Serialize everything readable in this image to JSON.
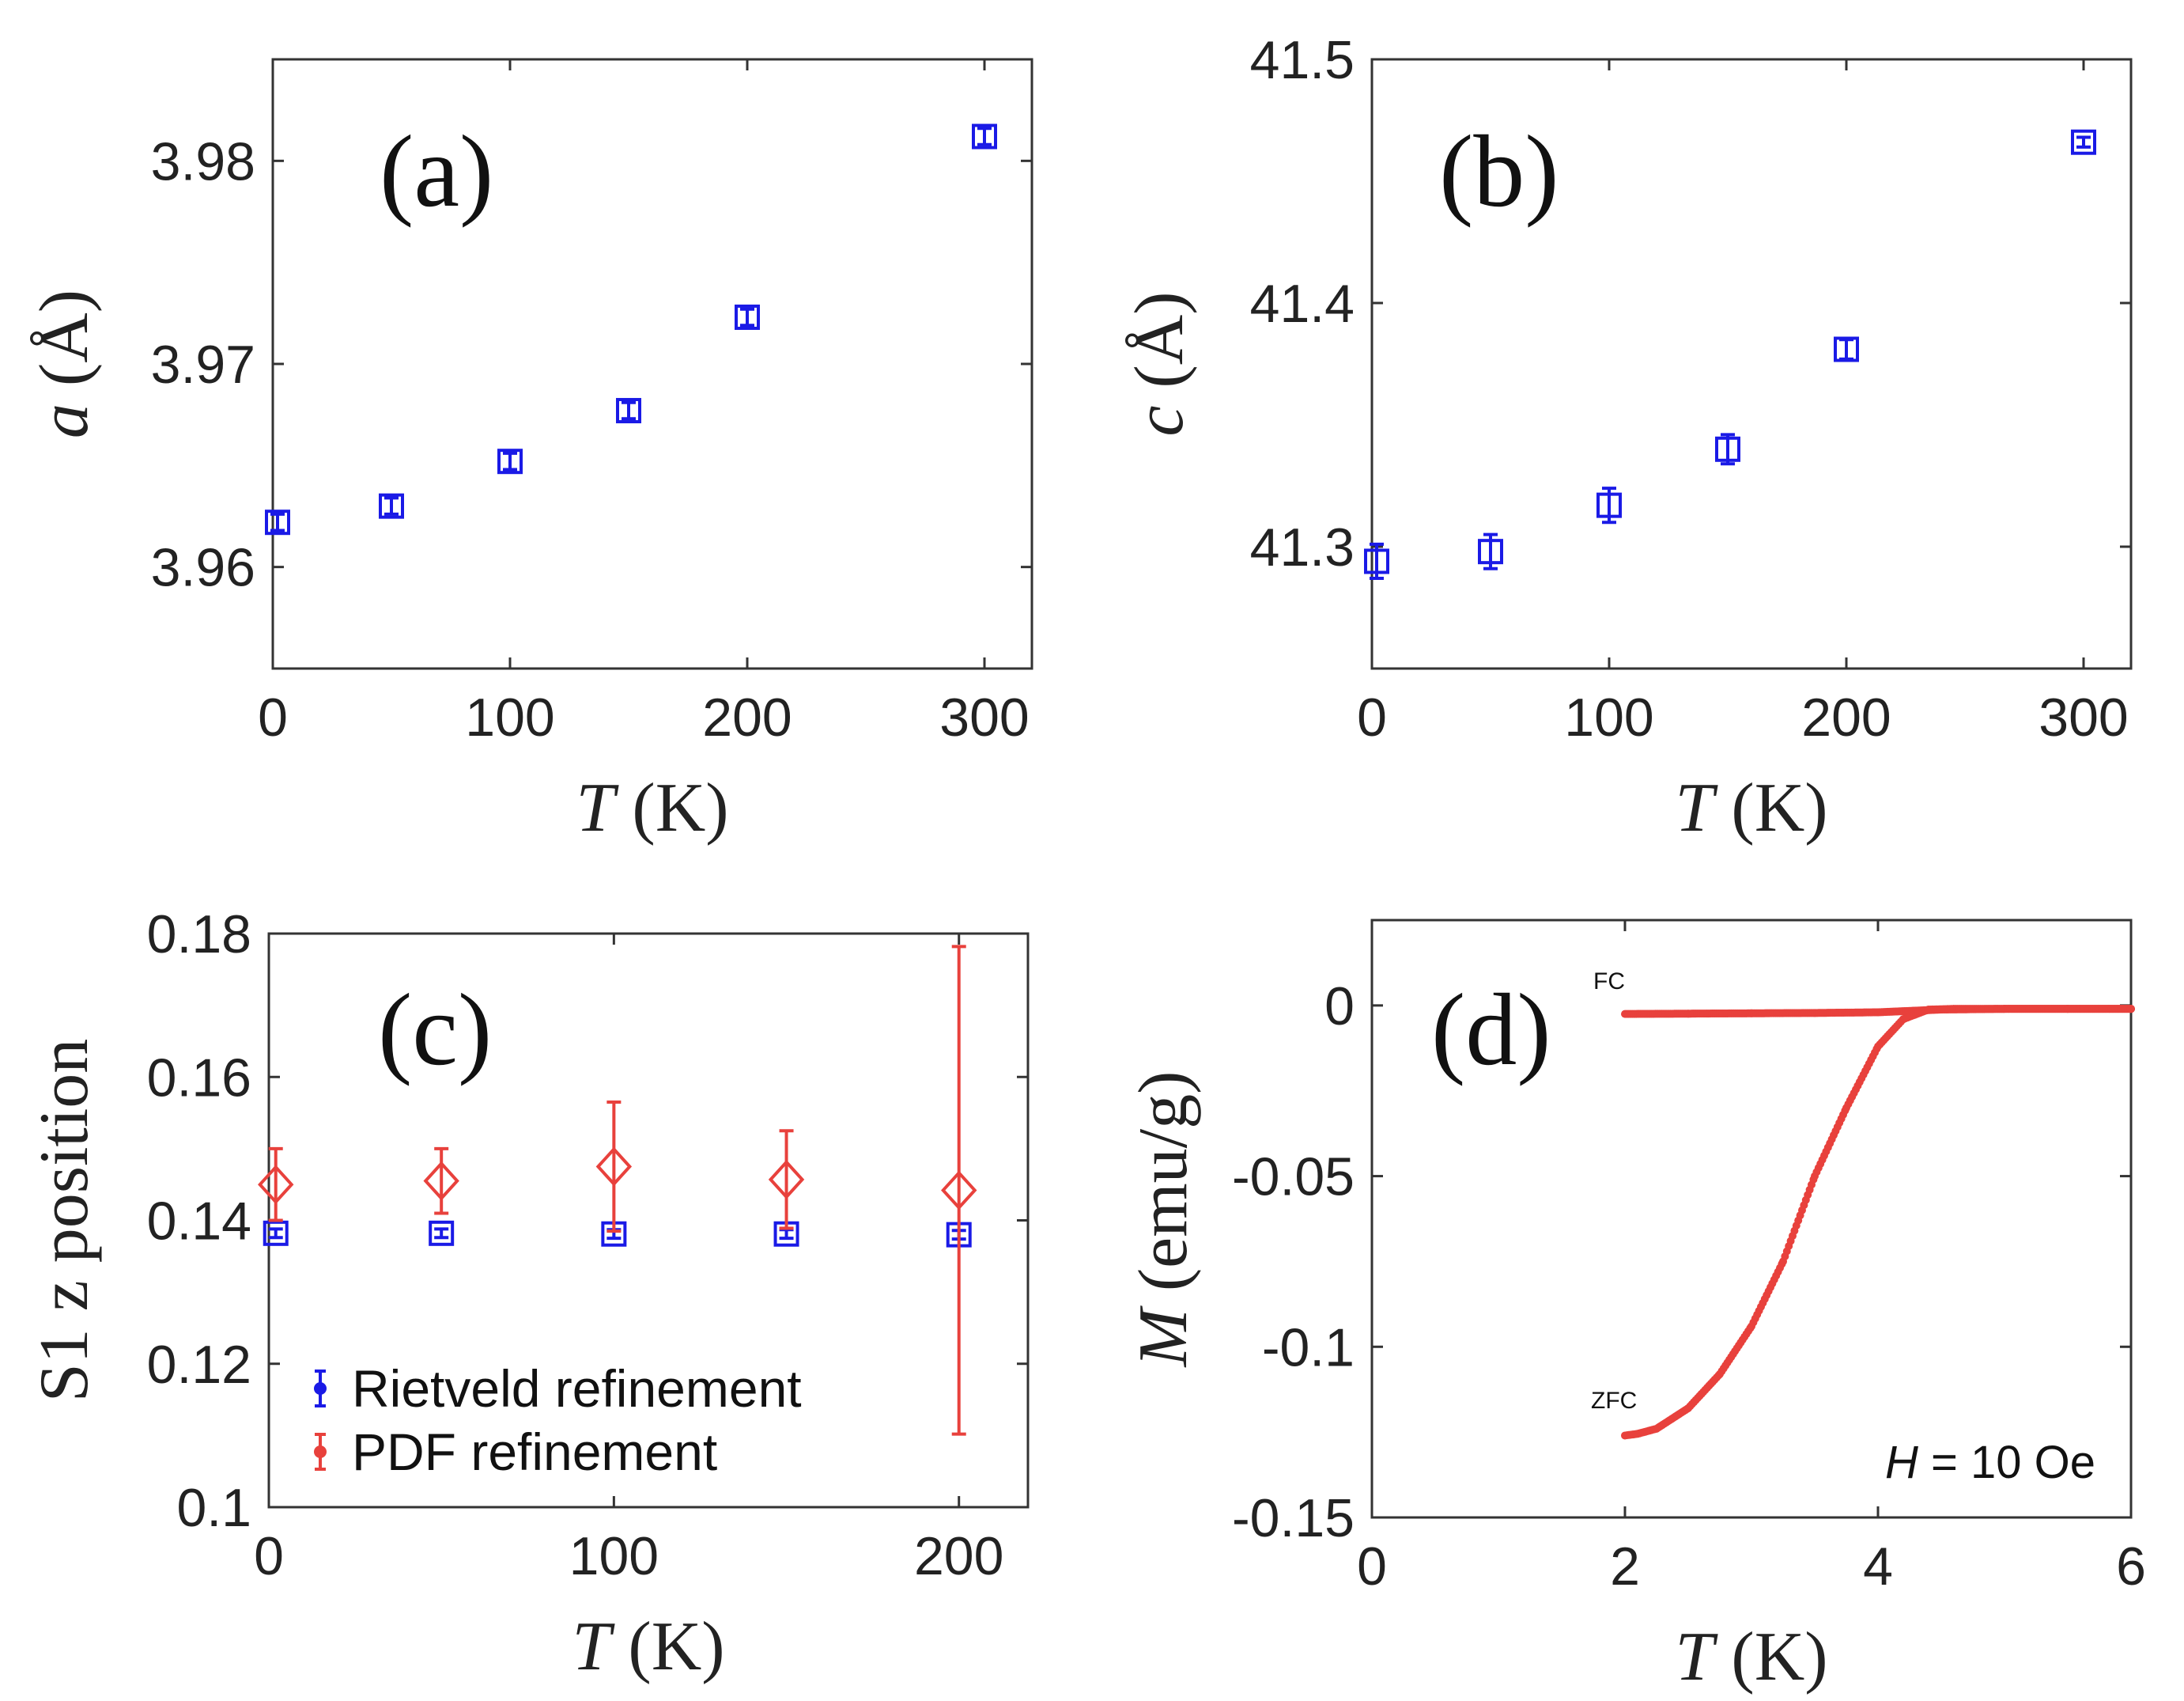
{
  "chart_data": [
    {
      "type": "scatter",
      "panel_label": "(a)",
      "xlabel_var": "T",
      "xlabel_unit": "(K)",
      "ylabel_var": "a",
      "ylabel_unit": "(Å)",
      "xlim": [
        0,
        320
      ],
      "ylim": [
        3.955,
        3.985
      ],
      "xticks": [
        0,
        100,
        200,
        300
      ],
      "xtick_labels": [
        "0",
        "100",
        "200",
        "300"
      ],
      "yticks": [
        3.96,
        3.97,
        3.98
      ],
      "ytick_labels": [
        "3.96",
        "3.97",
        "3.98"
      ],
      "series": [
        {
          "name": "Rietveld refinement",
          "marker": "square",
          "color": "#1a1ae6",
          "x": [
            2,
            50,
            100,
            150,
            200,
            300
          ],
          "y": [
            3.9622,
            3.963,
            3.9652,
            3.9677,
            3.9723,
            3.9812
          ],
          "err": [
            0.0004,
            0.0004,
            0.0004,
            0.0004,
            0.0004,
            0.0004
          ]
        }
      ]
    },
    {
      "type": "scatter",
      "panel_label": "(b)",
      "xlabel_var": "T",
      "xlabel_unit": "(K)",
      "ylabel_var": "c",
      "ylabel_unit": "(Å)",
      "xlim": [
        0,
        320
      ],
      "ylim": [
        41.25,
        41.5
      ],
      "xticks": [
        0,
        100,
        200,
        300
      ],
      "xtick_labels": [
        "0",
        "100",
        "200",
        "300"
      ],
      "yticks": [
        41.3,
        41.4,
        41.5
      ],
      "ytick_labels": [
        "41.3",
        "41.4",
        "41.5"
      ],
      "series": [
        {
          "name": "Rietveld refinement",
          "marker": "square",
          "color": "#1a1ae6",
          "x": [
            2,
            50,
            100,
            150,
            200,
            300
          ],
          "y": [
            41.294,
            41.298,
            41.317,
            41.34,
            41.381,
            41.466
          ],
          "err": [
            0.007,
            0.007,
            0.007,
            0.006,
            0.004,
            0.002
          ]
        }
      ]
    },
    {
      "type": "scatter",
      "panel_label": "(c)",
      "xlabel_var": "T",
      "xlabel_unit": "(K)",
      "ylabel_text": "S1 z position",
      "xlim": [
        0,
        220
      ],
      "ylim": [
        0.1,
        0.18
      ],
      "xticks": [
        0,
        100,
        200
      ],
      "xtick_labels": [
        "0",
        "100",
        "200"
      ],
      "yticks": [
        0.1,
        0.12,
        0.14,
        0.16,
        0.18
      ],
      "ytick_labels": [
        "0.1",
        "0.12",
        "0.14",
        "0.16",
        "0.18"
      ],
      "legend": {
        "placement": "bottom-left",
        "entries": [
          "Rietveld refinement",
          "PDF refinement"
        ]
      },
      "series": [
        {
          "name": "Rietveld refinement",
          "marker": "square",
          "color": "#1a1ae6",
          "x": [
            2,
            50,
            100,
            150,
            200
          ],
          "y": [
            0.1382,
            0.1382,
            0.1381,
            0.1381,
            0.138
          ],
          "err": [
            0.0006,
            0.0006,
            0.0006,
            0.0006,
            0.0006
          ]
        },
        {
          "name": "PDF refinement",
          "marker": "diamond",
          "color": "#e8413c",
          "x": [
            2,
            50,
            100,
            150,
            200
          ],
          "y": [
            0.145,
            0.1455,
            0.1475,
            0.1457,
            0.1442
          ],
          "err": [
            0.005,
            0.0045,
            0.009,
            0.0068,
            0.034
          ]
        }
      ]
    },
    {
      "type": "line",
      "panel_label": "(d)",
      "xlabel_var": "T",
      "xlabel_unit": "(K)",
      "ylabel_var": "M",
      "ylabel_unit": "(emu/g)",
      "xlim": [
        0,
        6
      ],
      "ylim": [
        -0.15,
        0.025
      ],
      "xticks": [
        0,
        2,
        4,
        6
      ],
      "xtick_labels": [
        "0",
        "2",
        "4",
        "6"
      ],
      "yticks": [
        -0.15,
        -0.1,
        -0.05,
        0
      ],
      "ytick_labels": [
        "-0.15",
        "-0.1",
        "-0.05",
        "0"
      ],
      "annotations": {
        "fc": "FC",
        "zfc": "ZFC",
        "field_var": "H",
        "field_value": "= 10 Oe"
      },
      "series": [
        {
          "name": "FC",
          "color": "#e8413c",
          "x": [
            2.0,
            2.5,
            3.0,
            3.5,
            4.0,
            4.5,
            5.0,
            5.5,
            6.0
          ],
          "y": [
            -0.0025,
            -0.0024,
            -0.0023,
            -0.0022,
            -0.002,
            -0.0012,
            -0.001,
            -0.001,
            -0.001
          ]
        },
        {
          "name": "ZFC",
          "color": "#e8413c",
          "x": [
            2.0,
            2.1,
            2.25,
            2.5,
            2.75,
            3.0,
            3.25,
            3.5,
            3.75,
            4.0,
            4.2,
            4.4,
            4.6,
            5.0,
            5.5,
            6.0
          ],
          "y": [
            -0.126,
            -0.1255,
            -0.124,
            -0.118,
            -0.108,
            -0.094,
            -0.075,
            -0.05,
            -0.03,
            -0.012,
            -0.004,
            -0.0012,
            -0.001,
            -0.001,
            -0.001,
            -0.001
          ]
        }
      ]
    }
  ]
}
